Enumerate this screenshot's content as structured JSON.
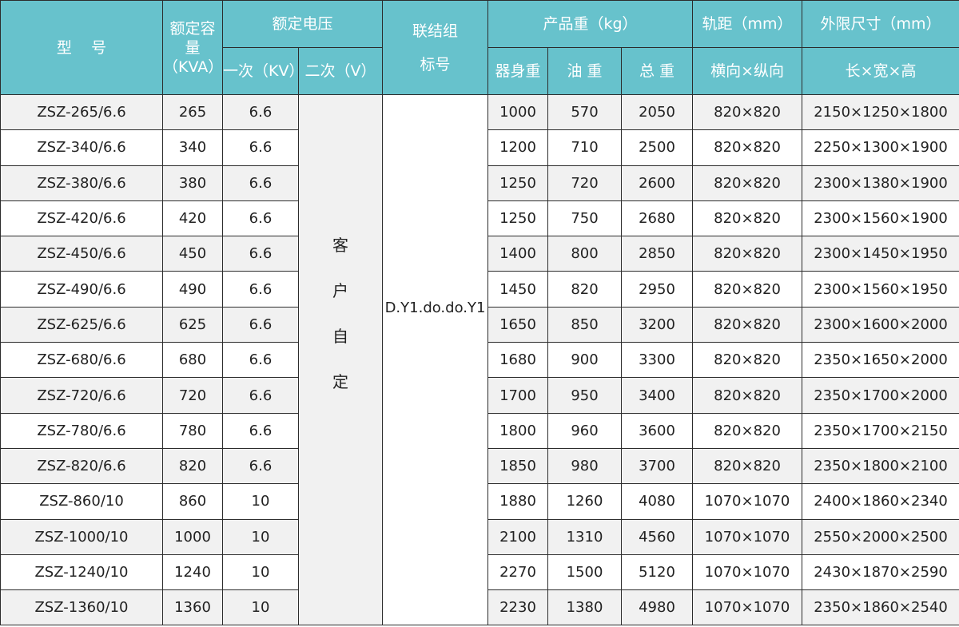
{
  "header": {
    "model": "型    号",
    "capacity": "额定容量（KVA）",
    "rated_voltage": "额定电压",
    "primary": "一次（KV）",
    "secondary": "二次（V）",
    "connection": "联结组",
    "connection2": "标号",
    "weight": "产品重（kg）",
    "body_weight": "器身重",
    "oil_weight": "油 重",
    "total_weight": "总 重",
    "gauge": "轨距（mm）",
    "gauge_sub": "横向×纵向",
    "dims": "外限尺寸（mm）",
    "dims_sub": "长×宽×高"
  },
  "secondary_value": [
    "客",
    "户",
    "自",
    "定"
  ],
  "connection_value": "D.Y1.do.do.Y1",
  "rows": [
    [
      "ZSZ-265/6.6",
      "265",
      "6.6",
      "1000",
      "570",
      "2050",
      "820×820",
      "2150×1250×1800"
    ],
    [
      "ZSZ-340/6.6",
      "340",
      "6.6",
      "1200",
      "710",
      "2500",
      "820×820",
      "2250×1300×1900"
    ],
    [
      "ZSZ-380/6.6",
      "380",
      "6.6",
      "1250",
      "720",
      "2600",
      "820×820",
      "2300×1380×1900"
    ],
    [
      "ZSZ-420/6.6",
      "420",
      "6.6",
      "1250",
      "750",
      "2680",
      "820×820",
      "2300×1560×1900"
    ],
    [
      "ZSZ-450/6.6",
      "450",
      "6.6",
      "1400",
      "800",
      "2850",
      "820×820",
      "2300×1450×1950"
    ],
    [
      "ZSZ-490/6.6",
      "490",
      "6.6",
      "1450",
      "820",
      "2950",
      "820×820",
      "2300×1560×1950"
    ],
    [
      "ZSZ-625/6.6",
      "625",
      "6.6",
      "1650",
      "850",
      "3200",
      "820×820",
      "2300×1600×2000"
    ],
    [
      "ZSZ-680/6.6",
      "680",
      "6.6",
      "1680",
      "900",
      "3300",
      "820×820",
      "2350×1650×2000"
    ],
    [
      "ZSZ-720/6.6",
      "720",
      "6.6",
      "1700",
      "950",
      "3400",
      "820×820",
      "2350×1700×2000"
    ],
    [
      "ZSZ-780/6.6",
      "780",
      "6.6",
      "1800",
      "960",
      "3600",
      "820×820",
      "2350×1700×2150"
    ],
    [
      "ZSZ-820/6.6",
      "820",
      "6.6",
      "1850",
      "980",
      "3700",
      "820×820",
      "2350×1800×2100"
    ],
    [
      "ZSZ-860/10",
      "860",
      "10",
      "1880",
      "1260",
      "4080",
      "1070×1070",
      "2400×1860×2340"
    ],
    [
      "ZSZ-1000/10",
      "1000",
      "10",
      "2100",
      "1310",
      "4560",
      "1070×1070",
      "2550×2000×2500"
    ],
    [
      "ZSZ-1240/10",
      "1240",
      "10",
      "2270",
      "1500",
      "5120",
      "1070×1070",
      "2430×1870×2590"
    ],
    [
      "ZSZ-1360/10",
      "1360",
      "10",
      "2230",
      "1380",
      "4980",
      "1070×1070",
      "2350×1860×2540"
    ]
  ],
  "colors": {
    "header_bg": "#67c2cc",
    "row_alt": "#f1f1f1",
    "border": "#2c2c2c"
  }
}
